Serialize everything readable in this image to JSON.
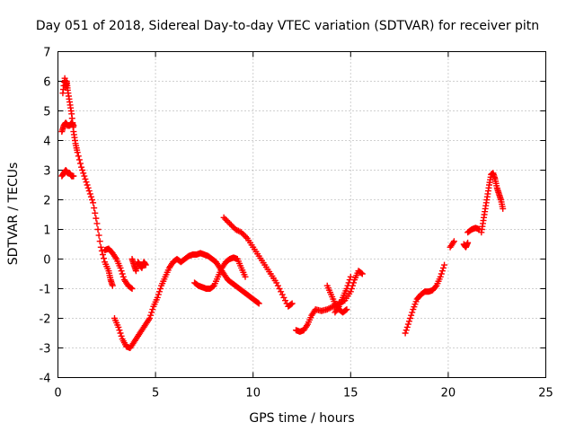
{
  "chart_data": {
    "type": "scatter",
    "title": "Day 051 of 2018, Sidereal Day-to-day VTEC variation (SDTVAR) for receiver pitn",
    "xlabel": "GPS time / hours",
    "ylabel": "SDTVAR / TECUs",
    "xlim": [
      0,
      25
    ],
    "ylim": [
      -4,
      7
    ],
    "xticks": [
      "0",
      "5",
      "10",
      "15",
      "20",
      "25"
    ],
    "yticks": [
      "-4",
      "-3",
      "-2",
      "-1",
      "0",
      "1",
      "2",
      "3",
      "4",
      "5",
      "6",
      "7"
    ],
    "grid": true,
    "marker": "plus",
    "color": "#ff0000",
    "series": [
      {
        "name": "s1",
        "x": [
          0.2,
          0.3,
          0.4,
          0.5,
          0.6,
          0.7,
          0.8
        ],
        "y": [
          2.8,
          2.9,
          3.0,
          2.9,
          2.9,
          2.8,
          2.8
        ]
      },
      {
        "name": "s2",
        "x": [
          0.2,
          0.3,
          0.4,
          0.5,
          0.6,
          0.7,
          0.8
        ],
        "y": [
          4.3,
          4.5,
          4.6,
          4.5,
          4.5,
          4.6,
          4.5
        ]
      },
      {
        "name": "s3",
        "x": [
          0.25,
          0.35,
          0.4,
          0.45,
          0.5,
          0.6,
          0.7,
          0.8,
          0.9,
          1.0,
          1.2,
          1.4,
          1.6,
          1.8,
          2.0,
          2.2,
          2.4,
          2.6,
          2.7,
          2.8
        ],
        "y": [
          5.6,
          6.1,
          5.8,
          6.0,
          5.7,
          5.3,
          4.9,
          4.3,
          3.9,
          3.6,
          3.1,
          2.7,
          2.3,
          1.9,
          1.2,
          0.4,
          -0.1,
          -0.4,
          -0.7,
          -0.9
        ]
      },
      {
        "name": "s4",
        "x": [
          2.4,
          2.6,
          2.8,
          3.0,
          3.2,
          3.4,
          3.6,
          3.8
        ],
        "y": [
          0.3,
          0.35,
          0.2,
          0.0,
          -0.3,
          -0.7,
          -0.9,
          -1.0
        ]
      },
      {
        "name": "s5",
        "x": [
          3.8,
          3.9,
          4.0,
          4.1,
          4.2,
          4.3,
          4.4,
          4.5
        ],
        "y": [
          0.0,
          -0.2,
          -0.4,
          -0.1,
          -0.2,
          -0.3,
          -0.1,
          -0.2
        ]
      },
      {
        "name": "s6",
        "x": [
          2.9,
          3.1,
          3.3,
          3.5,
          3.7,
          3.9,
          4.1,
          4.3,
          4.5,
          4.7,
          4.9,
          5.1,
          5.3,
          5.5,
          5.7,
          5.9,
          6.1,
          6.3,
          6.5,
          6.7,
          6.9,
          7.1,
          7.3,
          7.5,
          7.7,
          7.9,
          8.1,
          8.3,
          8.5,
          8.7,
          8.9,
          9.1,
          9.3,
          9.5,
          9.7,
          9.9,
          10.1,
          10.3
        ],
        "y": [
          -2.0,
          -2.3,
          -2.7,
          -2.95,
          -3.0,
          -2.8,
          -2.6,
          -2.4,
          -2.2,
          -2.0,
          -1.6,
          -1.3,
          -0.9,
          -0.6,
          -0.3,
          -0.1,
          0.0,
          -0.1,
          0.0,
          0.1,
          0.15,
          0.15,
          0.2,
          0.15,
          0.1,
          0.0,
          -0.1,
          -0.3,
          -0.5,
          -0.7,
          -0.8,
          -0.9,
          -1.0,
          -1.1,
          -1.2,
          -1.3,
          -1.4,
          -1.5
        ]
      },
      {
        "name": "s7",
        "x": [
          7.0,
          7.2,
          7.4,
          7.6,
          7.8,
          8.0,
          8.2,
          8.4,
          8.6,
          8.8,
          9.0,
          9.2,
          9.4,
          9.6
        ],
        "y": [
          -0.8,
          -0.9,
          -0.95,
          -1.0,
          -1.0,
          -0.9,
          -0.6,
          -0.3,
          -0.1,
          0.0,
          0.05,
          0.0,
          -0.3,
          -0.6
        ]
      },
      {
        "name": "s8",
        "x": [
          8.5,
          8.8,
          9.1,
          9.4,
          9.7,
          10.0,
          10.3,
          10.6,
          10.9,
          11.2,
          11.5,
          11.8,
          12.0
        ],
        "y": [
          1.4,
          1.2,
          1.0,
          0.9,
          0.7,
          0.4,
          0.1,
          -0.2,
          -0.5,
          -0.8,
          -1.2,
          -1.6,
          -1.5
        ]
      },
      {
        "name": "s9",
        "x": [
          12.2,
          12.4,
          12.6,
          12.8,
          13.0,
          13.2,
          13.5,
          13.8,
          14.1,
          14.4,
          14.7,
          15.0,
          15.2,
          15.4,
          15.6
        ],
        "y": [
          -2.4,
          -2.45,
          -2.4,
          -2.2,
          -1.9,
          -1.7,
          -1.75,
          -1.7,
          -1.6,
          -1.5,
          -1.4,
          -1.1,
          -0.7,
          -0.4,
          -0.5
        ]
      },
      {
        "name": "s10",
        "x": [
          13.8,
          14.0,
          14.2,
          14.4,
          14.6,
          14.8
        ],
        "y": [
          -0.9,
          -1.2,
          -1.5,
          -1.7,
          -1.8,
          -1.7
        ]
      },
      {
        "name": "s11",
        "x": [
          14.2,
          14.4,
          14.6,
          14.8,
          15.0
        ],
        "y": [
          -1.8,
          -1.6,
          -1.3,
          -1.0,
          -0.6
        ]
      },
      {
        "name": "s12",
        "x": [
          17.8,
          18.0,
          18.2,
          18.4,
          18.6,
          18.8,
          19.0,
          19.2,
          19.4,
          19.6,
          19.8
        ],
        "y": [
          -2.5,
          -2.1,
          -1.7,
          -1.35,
          -1.2,
          -1.1,
          -1.1,
          -1.05,
          -0.9,
          -0.6,
          -0.2
        ]
      },
      {
        "name": "s13",
        "x": [
          20.1,
          20.3
        ],
        "y": [
          0.4,
          0.6
        ]
      },
      {
        "name": "s14",
        "x": [
          20.8,
          20.9,
          21.0
        ],
        "y": [
          0.5,
          0.4,
          0.55
        ]
      },
      {
        "name": "s15",
        "x": [
          21.0,
          21.2,
          21.4,
          21.6
        ],
        "y": [
          0.9,
          1.0,
          1.05,
          1.0
        ]
      },
      {
        "name": "s16",
        "x": [
          21.7,
          21.8,
          21.9,
          22.0,
          22.1,
          22.2,
          22.3,
          22.4,
          22.5,
          22.6,
          22.7,
          22.8
        ],
        "y": [
          0.9,
          1.3,
          1.7,
          2.1,
          2.5,
          2.85,
          2.9,
          2.7,
          2.4,
          2.2,
          2.0,
          1.7
        ]
      }
    ]
  }
}
